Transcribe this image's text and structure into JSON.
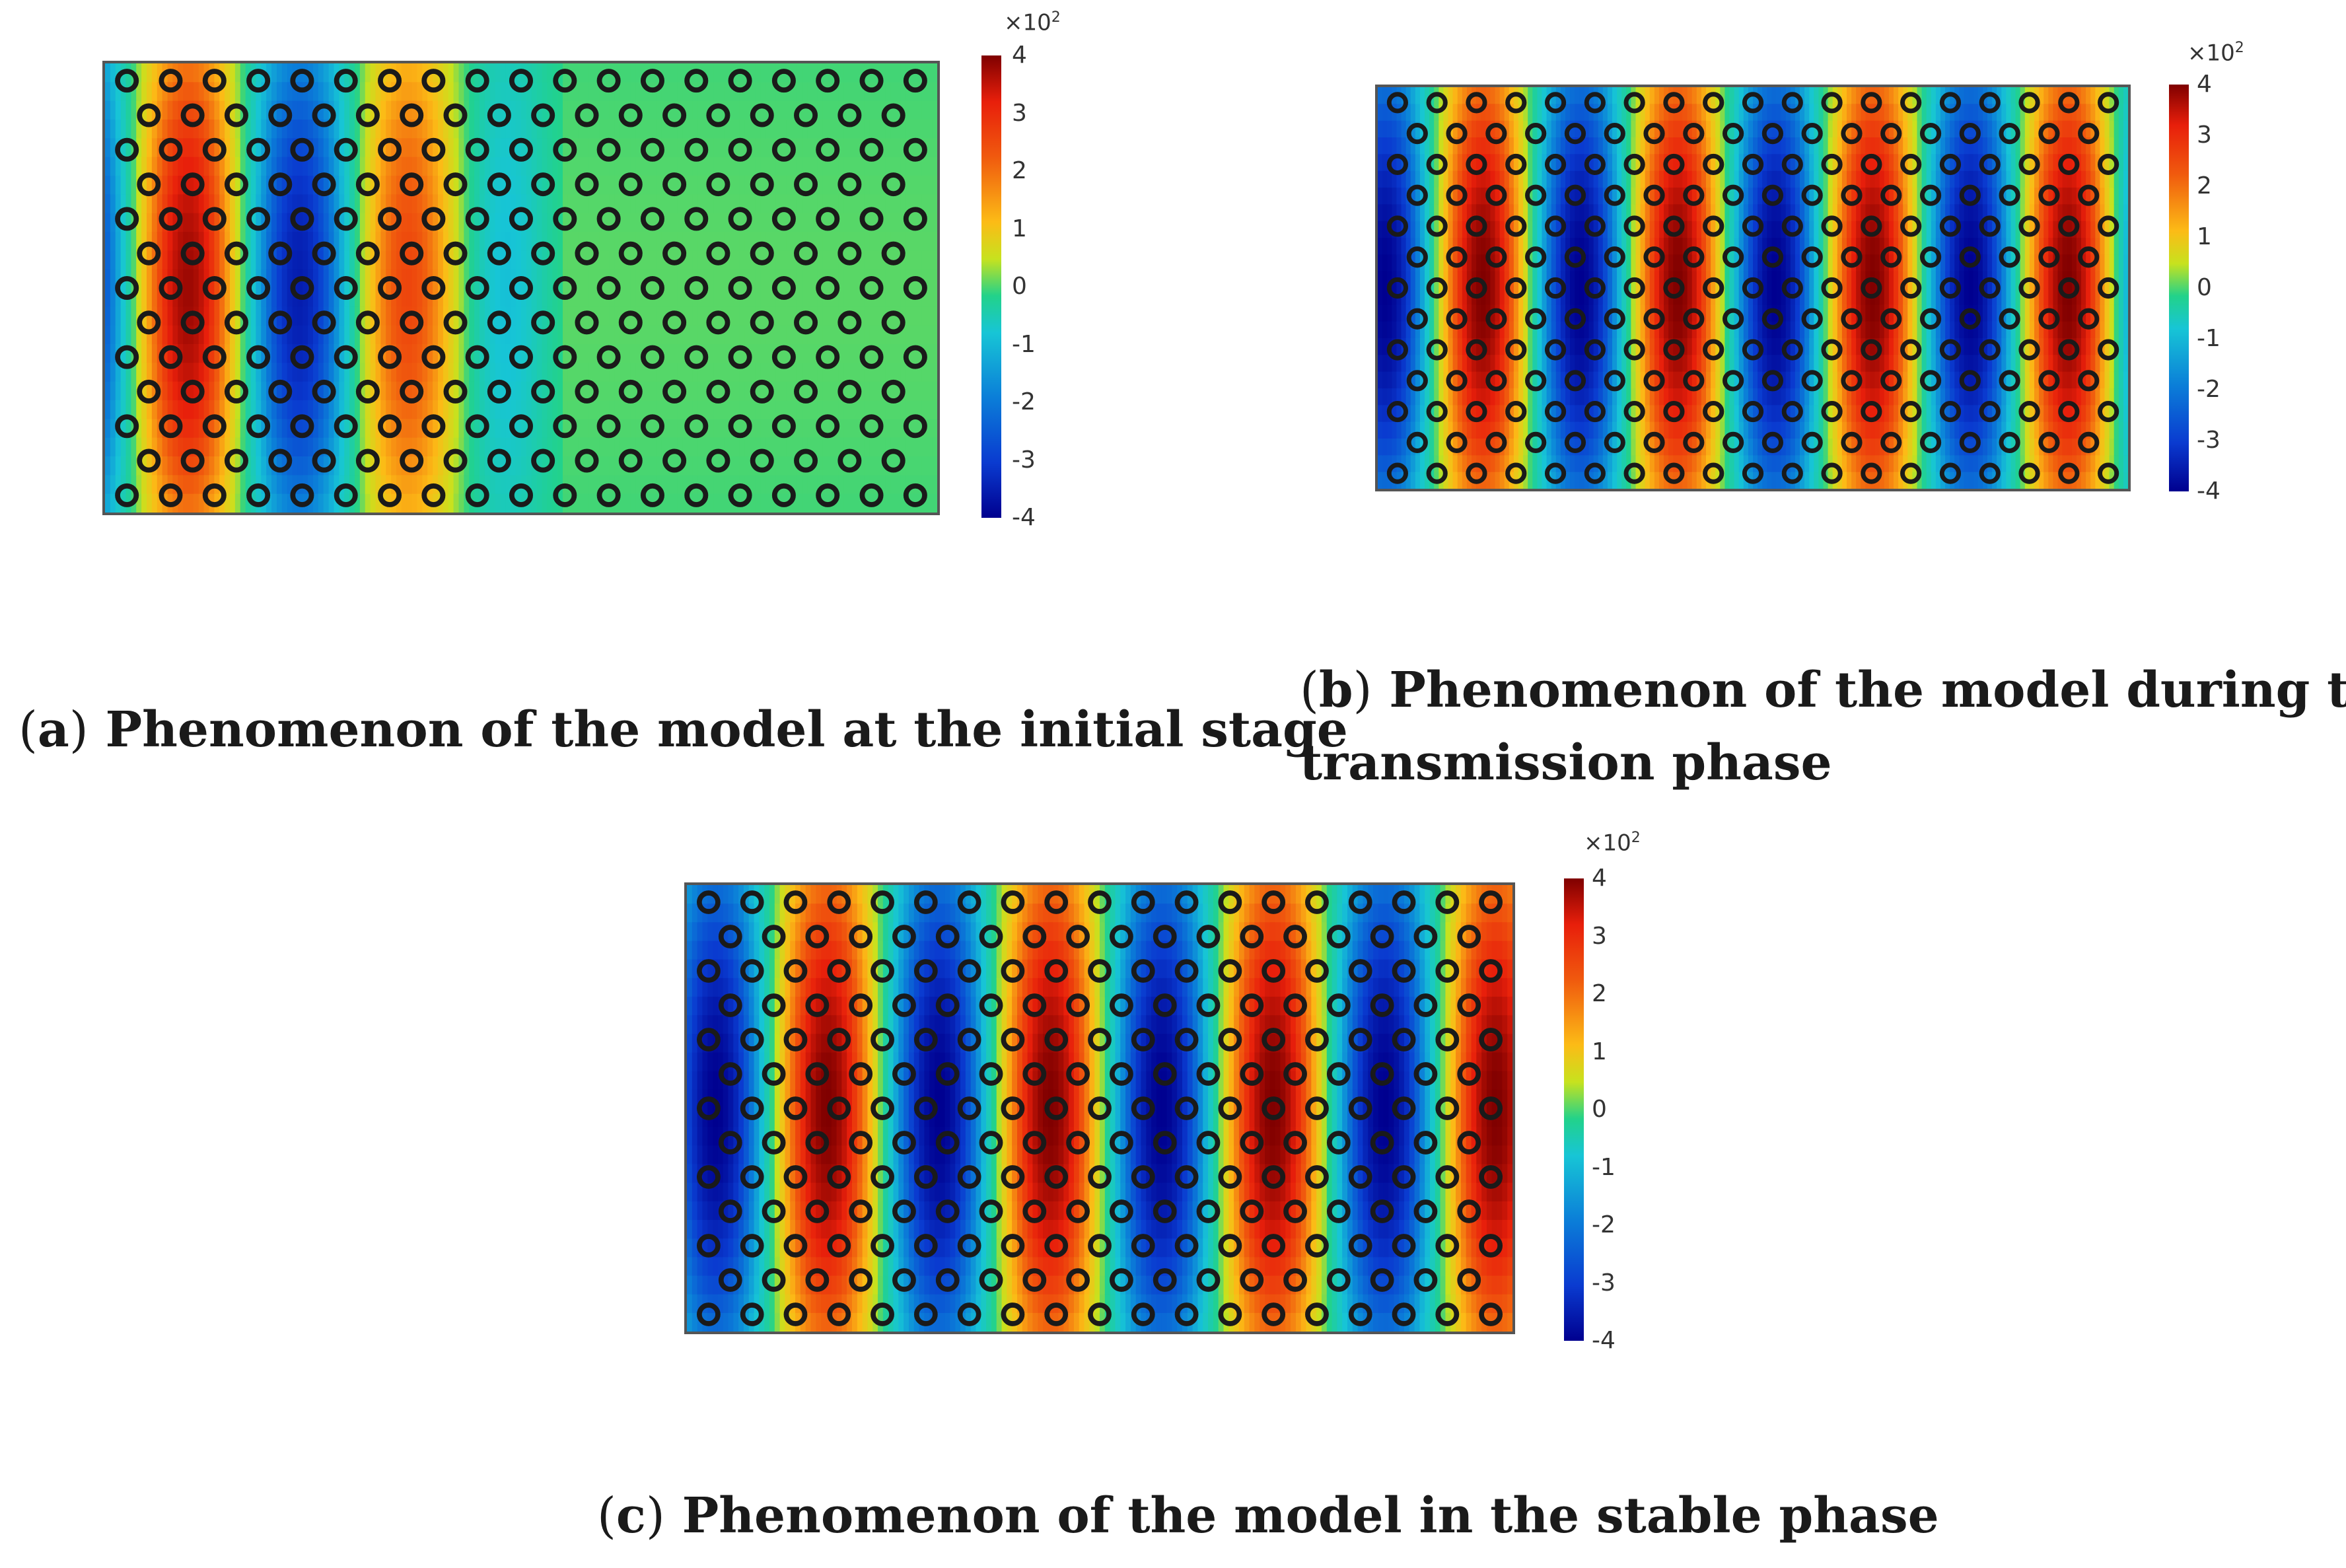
{
  "panels": [
    {
      "id": "a",
      "colorbar": {
        "unit_prefix": "×10",
        "unit_exp": "2",
        "ticks": [
          "4",
          "3",
          "2",
          "1",
          "0",
          "-1",
          "-2",
          "-3",
          "-4"
        ]
      },
      "caption": {
        "open": "(",
        "letter": "a",
        "close": ")",
        "text": " Phenomenon of the model at the initial stage"
      },
      "field": {
        "description_values": "pressure-like oscillation amplitude; source at left, decays to zero in right half",
        "wavelength_frac": 0.27,
        "phase_shift": 0.0,
        "amplitude_extent_frac": 0.55,
        "peak_amplitude": 4
      }
    },
    {
      "id": "b",
      "colorbar": {
        "unit_prefix": "×10",
        "unit_exp": "2",
        "ticks": [
          "4",
          "3",
          "2",
          "1",
          "0",
          "-1",
          "-2",
          "-3",
          "-4"
        ]
      },
      "caption": {
        "open": "(",
        "letter": "b",
        "close": ")",
        "line1": " Phenomenon of the model during the",
        "line2": "transmission phase"
      },
      "field": {
        "wavelength_frac": 0.26,
        "phase_shift": 0.0,
        "amplitude_extent_frac": 1.0,
        "peak_amplitude": 4
      }
    },
    {
      "id": "c",
      "colorbar": {
        "unit_prefix": "×10",
        "unit_exp": "2",
        "ticks": [
          "4",
          "3",
          "2",
          "1",
          "0",
          "-1",
          "-2",
          "-3",
          "-4"
        ]
      },
      "caption": {
        "open": "(",
        "letter": "c",
        "close": ")",
        "text": " Phenomenon of the model in the stable phase"
      },
      "field": {
        "wavelength_frac": 0.27,
        "phase_shift": 0.15,
        "amplitude_extent_frac": 1.0,
        "peak_amplitude": 4
      }
    }
  ],
  "lattice": {
    "rows": 13,
    "cols_even": 19,
    "cols_odd": 18,
    "scatterer": "ring"
  }
}
